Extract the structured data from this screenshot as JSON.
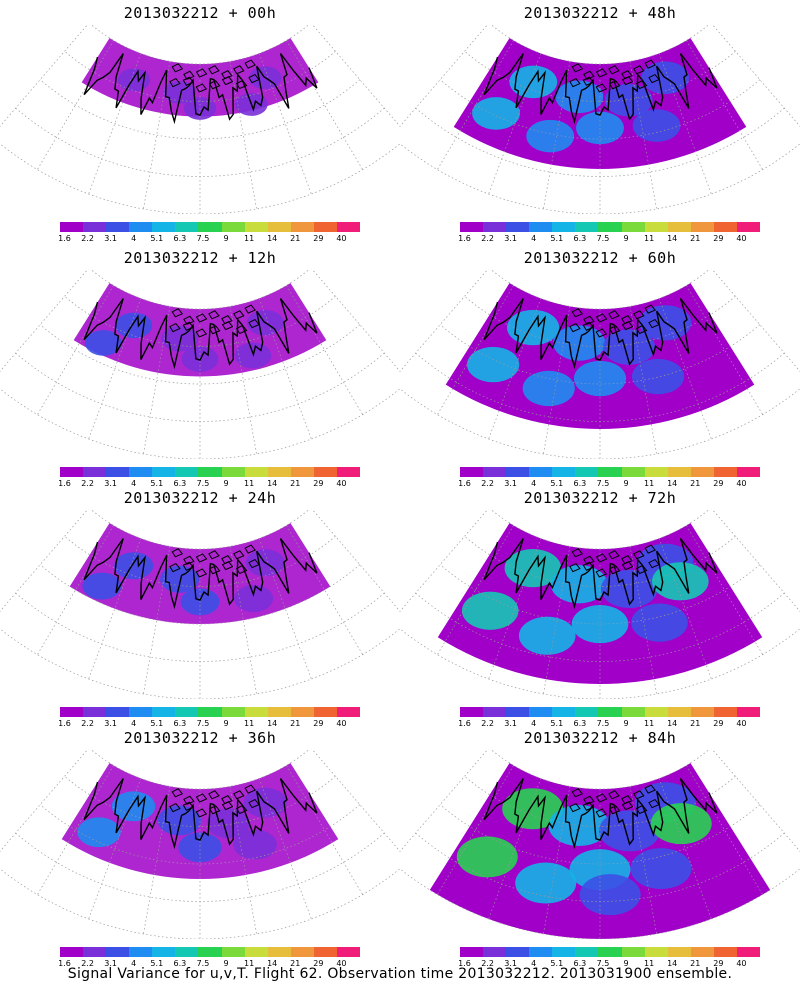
{
  "caption": "Signal Variance for u,v,T. Flight 62. Observation time 2013032212. 2013031900 ensemble.",
  "colorbar": {
    "labels": [
      "1.6",
      "2.2",
      "3.1",
      "4",
      "5.1",
      "6.3",
      "7.5",
      "9",
      "11",
      "14",
      "21",
      "29",
      "40"
    ],
    "colors": [
      "#a000c8",
      "#7a30d8",
      "#3c50e6",
      "#1e8cf0",
      "#14b4e6",
      "#14c8b4",
      "#28d250",
      "#7ada3c",
      "#c8dc3c",
      "#e6be3c",
      "#f0963c",
      "#f06432",
      "#f01e78"
    ]
  },
  "panels": [
    {
      "title": "2013032212 + 00h",
      "field": "purple-sparse",
      "level": 0.1
    },
    {
      "title": "2013032212 + 48h",
      "field": "purple-blue-patches",
      "level": 0.45
    },
    {
      "title": "2013032212 + 12h",
      "field": "purple-blobs",
      "level": 0.2
    },
    {
      "title": "2013032212 + 60h",
      "field": "blue-green-broad",
      "level": 0.55
    },
    {
      "title": "2013032212 + 24h",
      "field": "purple-blobs",
      "level": 0.25
    },
    {
      "title": "2013032212 + 72h",
      "field": "blue-green-broad",
      "level": 0.65
    },
    {
      "title": "2013032212 + 36h",
      "field": "purple-blue-patches",
      "level": 0.35
    },
    {
      "title": "2013032212 + 84h",
      "field": "green-yellow-broad",
      "level": 0.75
    }
  ]
}
